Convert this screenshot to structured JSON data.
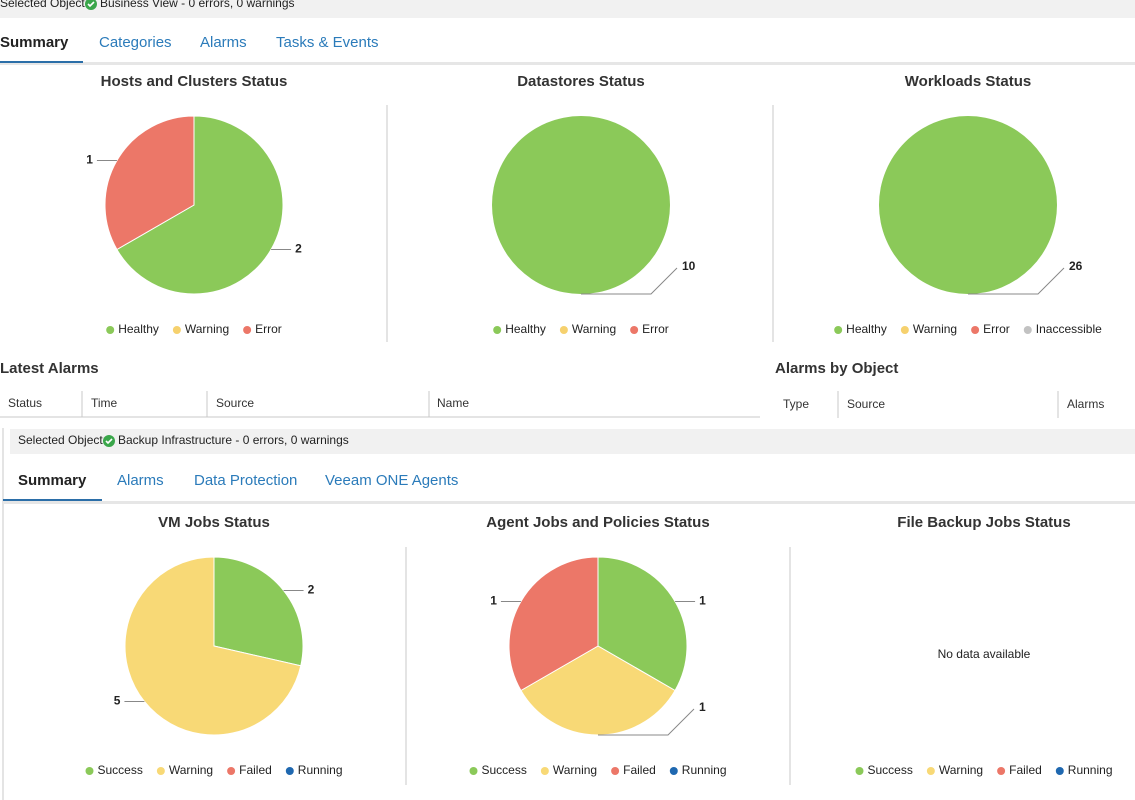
{
  "top": {
    "selected_label": "Selected Object:",
    "selected_text": "Business View - 0 errors, 0 warnings",
    "tabs": [
      "Summary",
      "Categories",
      "Alarms",
      "Tasks & Events"
    ],
    "charts": [
      {
        "type": "pie",
        "title": "Hosts and Clusters Status",
        "categories": [
          "Healthy",
          "Warning",
          "Error"
        ],
        "values": [
          2,
          0,
          1
        ],
        "colors": [
          "#8bc959",
          "#f6d16e",
          "#ec7768"
        ]
      },
      {
        "type": "pie",
        "title": "Datastores Status",
        "categories": [
          "Healthy",
          "Warning",
          "Error"
        ],
        "values": [
          10,
          0,
          0
        ],
        "colors": [
          "#8bc959",
          "#f6d16e",
          "#ec7768"
        ]
      },
      {
        "type": "pie",
        "title": "Workloads Status",
        "categories": [
          "Healthy",
          "Warning",
          "Error",
          "Inaccessible"
        ],
        "values": [
          26,
          0,
          0,
          0
        ],
        "colors": [
          "#8bc959",
          "#f6d16e",
          "#ec7768",
          "#c2c2c2"
        ]
      }
    ],
    "latest_alarms": {
      "title": "Latest Alarms",
      "columns": [
        "Status",
        "Time",
        "Source",
        "Name"
      ]
    },
    "alarms_by_object": {
      "title": "Alarms by Object",
      "columns": [
        "Type",
        "Source",
        "Alarms"
      ]
    }
  },
  "bottom": {
    "selected_label": "Selected Object:",
    "selected_text": "Backup Infrastructure - 0 errors, 0 warnings",
    "tabs": [
      "Summary",
      "Alarms",
      "Data Protection",
      "Veeam ONE Agents"
    ],
    "charts": [
      {
        "type": "pie",
        "title": "VM Jobs Status",
        "categories": [
          "Success",
          "Warning",
          "Failed",
          "Running"
        ],
        "values": [
          2,
          5,
          0,
          0
        ],
        "colors": [
          "#8bc959",
          "#f8d976",
          "#ec7768",
          "#1f68b0"
        ]
      },
      {
        "type": "pie",
        "title": "Agent Jobs and Policies Status",
        "categories": [
          "Success",
          "Warning",
          "Failed",
          "Running"
        ],
        "values": [
          1,
          1,
          1,
          0
        ],
        "colors": [
          "#8bc959",
          "#f8d976",
          "#ec7768",
          "#1f68b0"
        ]
      },
      {
        "type": "pie",
        "title": "File Backup Jobs Status",
        "categories": [
          "Success",
          "Warning",
          "Failed",
          "Running"
        ],
        "message": "No data available",
        "colors": [
          "#8bc959",
          "#f8d976",
          "#ec7768",
          "#1f68b0"
        ]
      }
    ]
  }
}
